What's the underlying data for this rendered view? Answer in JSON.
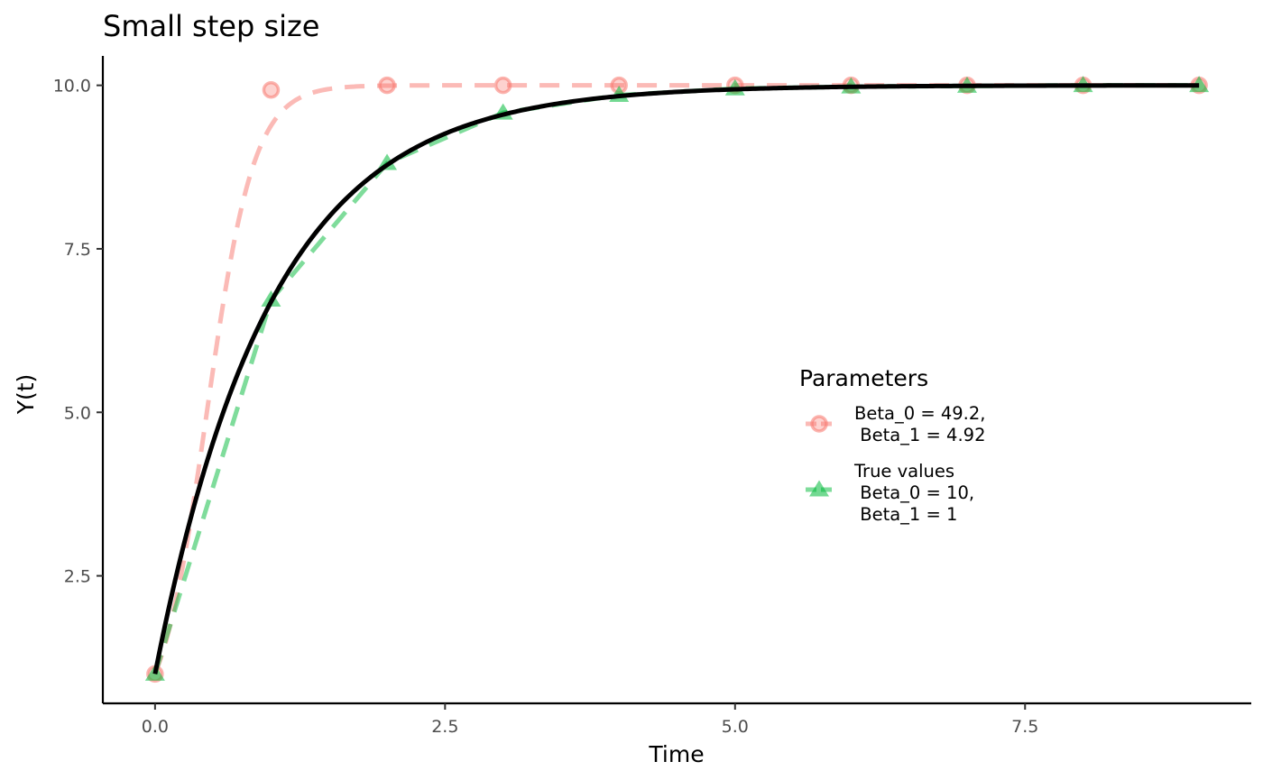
{
  "chart_data": {
    "type": "line",
    "title": "Small step size",
    "xlabel": "Time",
    "ylabel": "Y(t)",
    "xlim": [
      -0.45,
      9.45
    ],
    "ylim": [
      0.55,
      10.45
    ],
    "x_ticks": [
      0.0,
      2.5,
      5.0,
      7.5
    ],
    "x_tick_labels": [
      "0.0",
      "2.5",
      "5.0",
      "7.5"
    ],
    "y_ticks": [
      2.5,
      5.0,
      7.5,
      10.0
    ],
    "y_tick_labels": [
      "2.5",
      "5.0",
      "7.5",
      "10.0"
    ],
    "grid": false,
    "legend": {
      "title": "Parameters",
      "placement": "right-middle inside",
      "entries": [
        {
          "series": 0,
          "lines": [
            "Beta_0 = 49.2,",
            " Beta_1 = 4.92"
          ]
        },
        {
          "series": 1,
          "lines": [
            "True values",
            " Beta_0 = 10,",
            " Beta_1 = 1"
          ]
        }
      ]
    },
    "series": [
      {
        "color": "#f8766d",
        "opacity": 0.5,
        "line_style": "dashed",
        "marker": "circle",
        "curve": {
          "form": "logistic",
          "carrying_capacity": 10,
          "rate": 4.92,
          "y0": 1,
          "x_from": 0,
          "x_to": 9
        },
        "x": [
          0,
          1,
          2,
          3,
          4,
          5,
          6,
          7,
          8,
          9
        ],
        "y": [
          1.0,
          9.93,
          10.0,
          10.0,
          10.0,
          10.0,
          10.0,
          10.0,
          10.0,
          10.0
        ]
      },
      {
        "color": "#00ba38",
        "opacity": 0.5,
        "line_style": "dashed",
        "marker": "triangle",
        "x": [
          0,
          1,
          2,
          3,
          4,
          5,
          6,
          7,
          8,
          9
        ],
        "y": [
          1.0,
          6.72,
          8.81,
          9.58,
          9.85,
          9.95,
          9.98,
          9.99,
          10.0,
          10.0
        ]
      },
      {
        "color": "#000000",
        "opacity": 1,
        "line_style": "solid",
        "marker": "none",
        "curve": {
          "form": "exponential_approach",
          "asymptote": 10,
          "rate": 1,
          "y0": 1,
          "x_from": 0,
          "x_to": 9
        }
      }
    ]
  }
}
